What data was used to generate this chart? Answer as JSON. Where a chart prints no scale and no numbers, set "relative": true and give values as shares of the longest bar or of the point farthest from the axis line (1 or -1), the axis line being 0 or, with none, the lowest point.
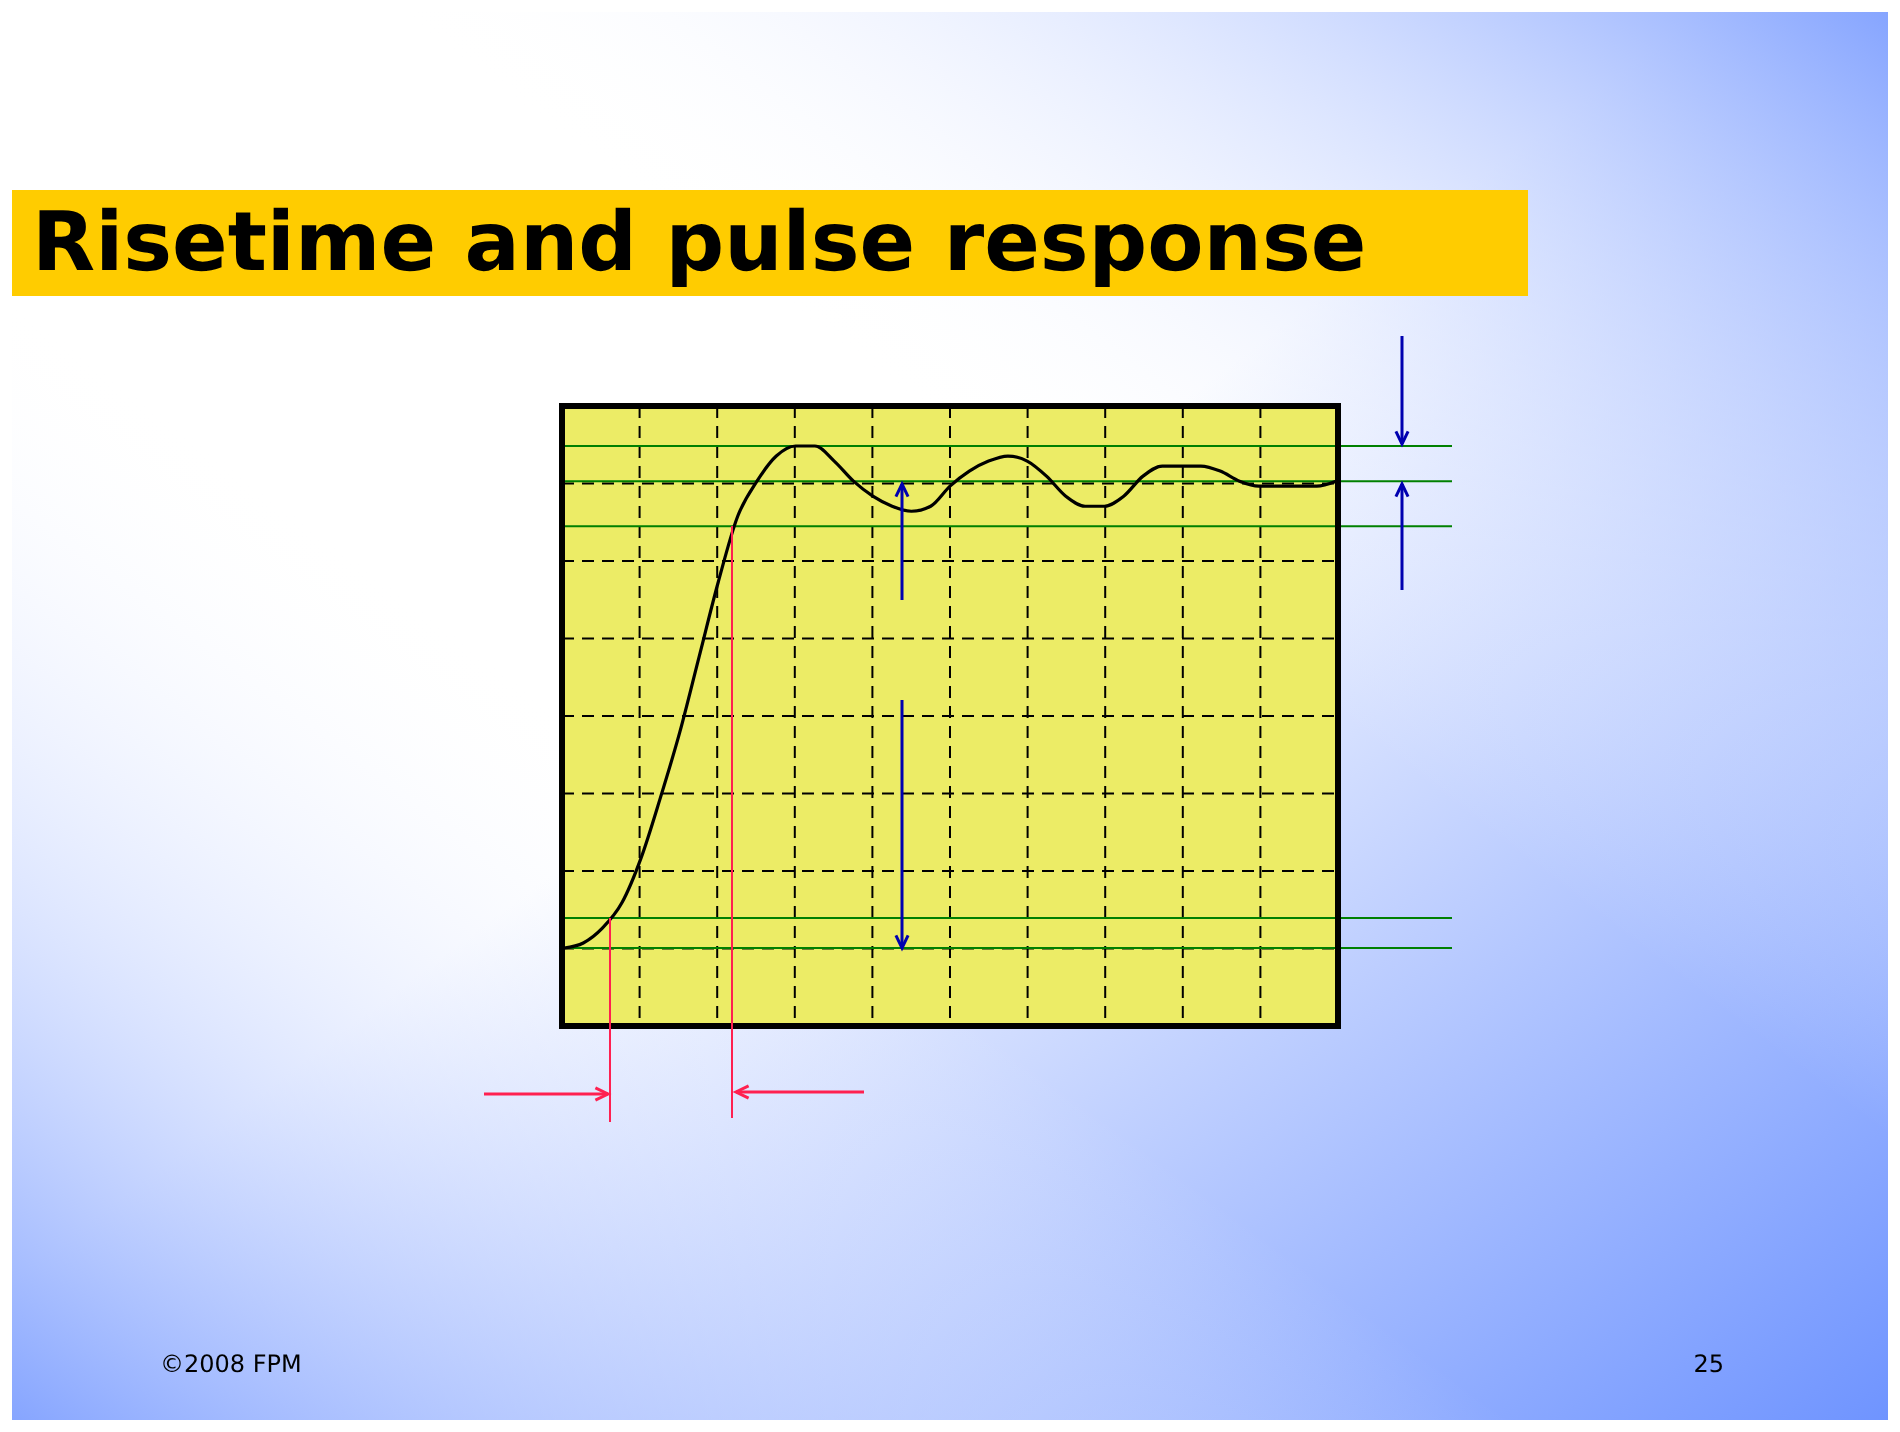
{
  "chart_data": {
    "type": "line",
    "title": "Risetime and pulse response",
    "relative": true,
    "grid": true,
    "categories": [
      null,
      null,
      null,
      null,
      null,
      null,
      null,
      null,
      null,
      null,
      null,
      null,
      null,
      null,
      null,
      null,
      null,
      null,
      null,
      null,
      null,
      null,
      null,
      null,
      null,
      null,
      null,
      null,
      null,
      null,
      null,
      null,
      null,
      null,
      null,
      null,
      null,
      null,
      null,
      null,
      null
    ],
    "series": [
      {
        "color": "#000000",
        "values": [
          0,
          0.01,
          0.04,
          0.09,
          0.18,
          0.3,
          0.43,
          0.58,
          0.73,
          0.86,
          0.93,
          0.98,
          1,
          1,
          0.97,
          0.93,
          0.9,
          0.88,
          0.87,
          0.88,
          0.92,
          0.95,
          0.97,
          0.98,
          0.97,
          0.94,
          0.9,
          0.88,
          0.88,
          0.9,
          0.94,
          0.96,
          0.96,
          0.96,
          0.95,
          0.93,
          0.92,
          0.92,
          0.92,
          0.92,
          0.93
        ]
      }
    ],
    "ref_lines": [
      {
        "axis": "y",
        "value": 1,
        "color": "#008000"
      },
      {
        "axis": "y",
        "value": 0.93,
        "color": "#008000"
      },
      {
        "axis": "y",
        "value": 0.84,
        "color": "#008000"
      },
      {
        "axis": "y",
        "value": 0.06,
        "color": "#008000"
      },
      {
        "axis": "y",
        "value": 0,
        "color": "#008000"
      }
    ],
    "annotations": [
      "©2008 FPM",
      "25"
    ]
  }
}
